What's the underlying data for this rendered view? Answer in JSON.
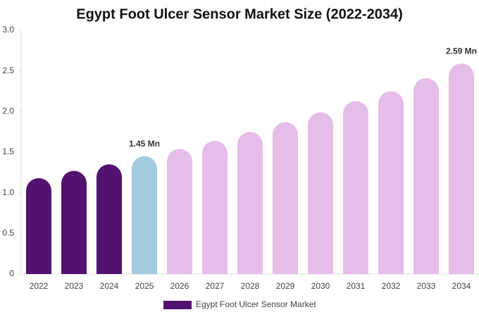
{
  "chart_data": {
    "type": "bar",
    "title": "Egypt Foot Ulcer Sensor Market Size (2022-2034)",
    "categories": [
      "2022",
      "2023",
      "2024",
      "2025",
      "2026",
      "2027",
      "2028",
      "2029",
      "2030",
      "2031",
      "2032",
      "2033",
      "2034"
    ],
    "series": [
      {
        "name": "Egypt Foot Ulcer Sensor Market",
        "color": "#541270",
        "values": [
          1.18,
          1.27,
          1.35,
          1.45,
          1.54,
          1.64,
          1.75,
          1.87,
          1.99,
          2.13,
          2.25,
          2.41,
          2.59
        ],
        "value_labels": [
          null,
          null,
          null,
          "1.45 Mn",
          null,
          null,
          null,
          null,
          null,
          null,
          null,
          null,
          "2.59 Mn"
        ]
      }
    ],
    "bar_colors": [
      "#541270",
      "#541270",
      "#541270",
      "#a3cbe0",
      "#e6bde9",
      "#e6bde9",
      "#e6bde9",
      "#e6bde9",
      "#e6bde9",
      "#e6bde9",
      "#e6bde9",
      "#e6bde9",
      "#e6bde9"
    ],
    "ylim": [
      0,
      3
    ],
    "yticks": [
      0,
      0.5,
      {
        "value": 1,
        "label": "1.0"
      },
      1.5,
      {
        "value": 2,
        "label": "2.0"
      },
      2.5,
      {
        "value": 3,
        "label": "3.0"
      }
    ],
    "grid": false,
    "legend": "bottom"
  }
}
